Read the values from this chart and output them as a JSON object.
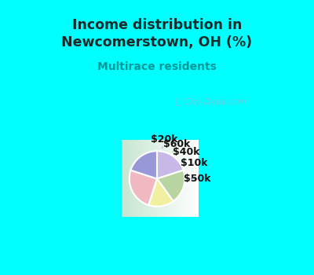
{
  "title": "Income distribution in\nNewcomerstown, OH (%)",
  "subtitle": "Multirace residents",
  "title_color": "#1a2a2a",
  "subtitle_color": "#009999",
  "bg_color_top": "#00ffff",
  "labels": [
    "$20k",
    "$60k",
    "$40k",
    "$10k",
    "$50k"
  ],
  "sizes": [
    20,
    20,
    15,
    25,
    20
  ],
  "colors": [
    "#c8b8e8",
    "#b8d4a0",
    "#f0f0a0",
    "#f0b8c0",
    "#9898d8"
  ],
  "startangle": 90,
  "watermark": "City-Data.com"
}
